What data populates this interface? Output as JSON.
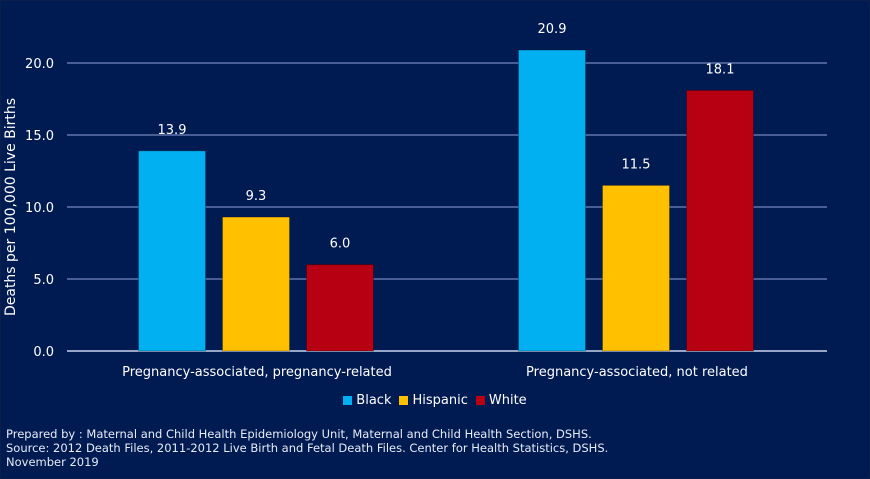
{
  "chart_data": {
    "type": "bar",
    "title": "",
    "xlabel": "",
    "ylabel": "Deaths per 100,000 Live Births",
    "ylim": [
      0,
      20
    ],
    "yticks": [
      "0.0",
      "5.0",
      "10.0",
      "15.0",
      "20.0"
    ],
    "ytick_values": [
      0,
      5,
      10,
      15,
      20
    ],
    "grid": true,
    "legend_position": "bottom",
    "categories": [
      "Pregnancy-associated, pregnancy-related",
      "Pregnancy-associated, not related"
    ],
    "series": [
      {
        "name": "Black",
        "color": "#00b0f0",
        "values": [
          13.9,
          20.9
        ],
        "labels": [
          "13.9",
          "20.9"
        ]
      },
      {
        "name": "Hispanic",
        "color": "#ffc000",
        "values": [
          9.3,
          11.5
        ],
        "labels": [
          "9.3",
          "11.5"
        ]
      },
      {
        "name": "White",
        "color": "#b70011",
        "values": [
          6.0,
          18.1
        ],
        "labels": [
          "6.0",
          "18.1"
        ]
      }
    ]
  },
  "colors": {
    "background": "#001a52",
    "gridline": "#8fa3d6",
    "text": "#ffffff"
  },
  "footer": {
    "line1": "Prepared by : Maternal and Child Health Epidemiology Unit, Maternal and Child Health Section, DSHS.",
    "line2": "Source: 2012 Death Files, 2011-2012 Live Birth and Fetal Death Files. Center for Health Statistics, DSHS.",
    "line3": "November 2019"
  }
}
